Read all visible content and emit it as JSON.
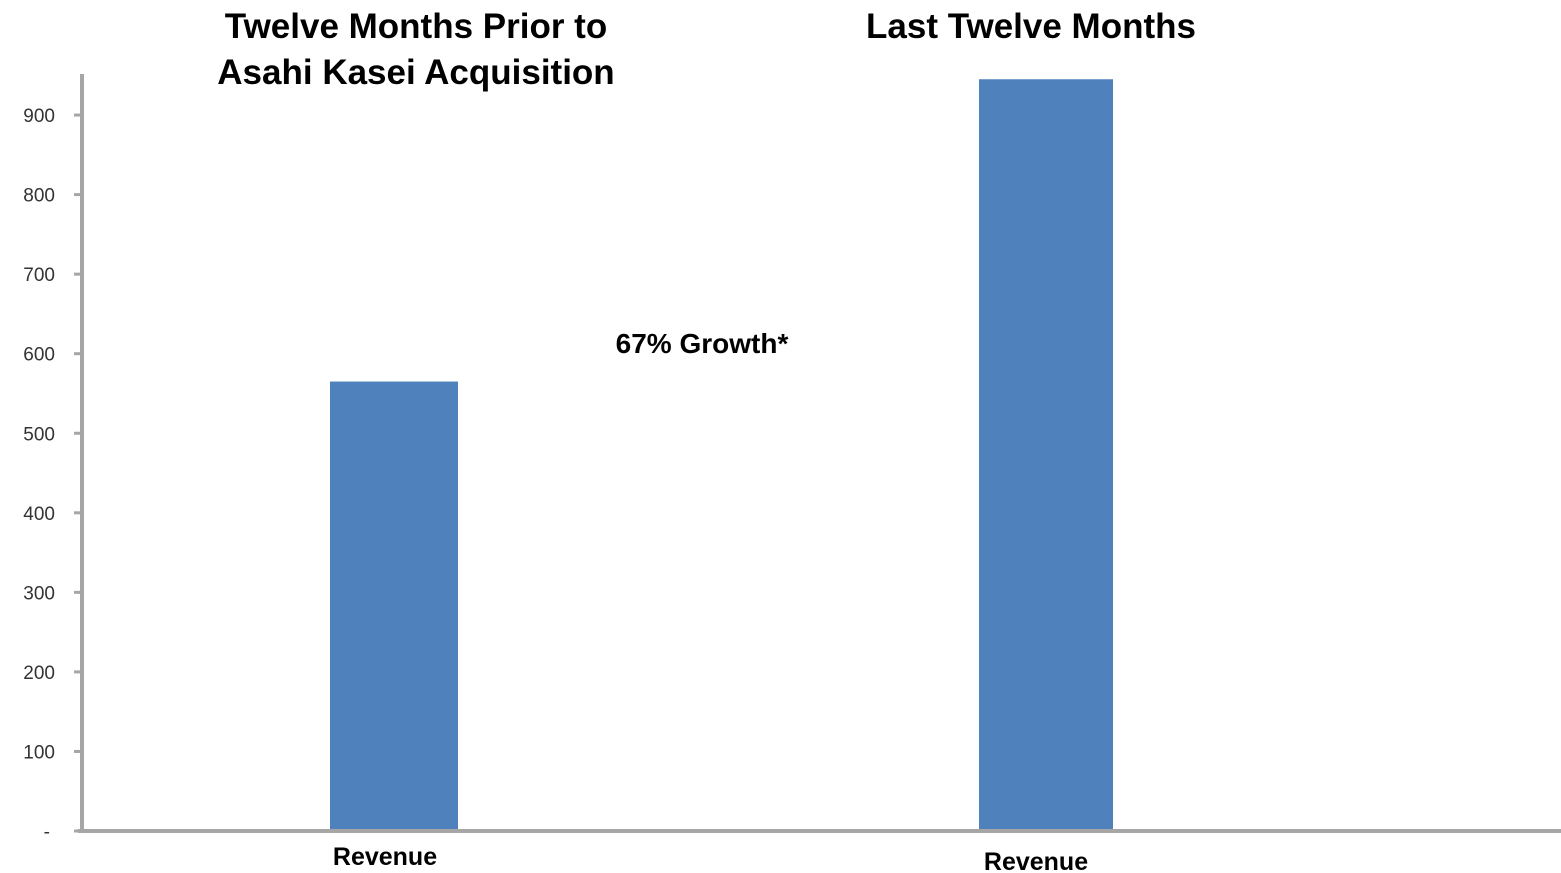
{
  "chart_data": {
    "type": "bar",
    "categories": [
      "Revenue",
      "Revenue"
    ],
    "group_titles": [
      [
        "Twelve Months Prior to",
        "Asahi Kasei Acquisition"
      ],
      [
        "Last Twelve Months"
      ]
    ],
    "values": [
      565,
      945
    ],
    "annotation": "67% Growth*",
    "yticks": [
      "-",
      "100",
      "200",
      "300",
      "400",
      "500",
      "600",
      "700",
      "800",
      "900"
    ],
    "ylim": [
      0,
      950
    ],
    "grid": false,
    "bar_color": "#4f81bd",
    "axis_color": "#a6a6a6"
  }
}
